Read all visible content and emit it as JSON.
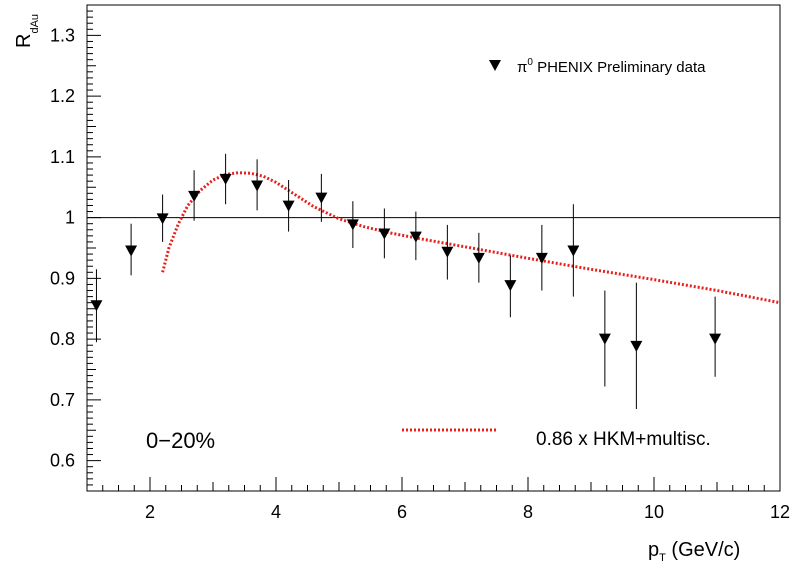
{
  "chart_data": {
    "type": "scatter",
    "xlabel": "p",
    "xlabel_sub": "T",
    "xlabel_unit": " (GeV/c)",
    "ylabel": "R",
    "ylabel_sub": "dAu",
    "xlim": [
      1.0,
      12.0
    ],
    "ylim": [
      0.55,
      1.35
    ],
    "xticks": [
      2,
      4,
      6,
      8,
      10,
      12
    ],
    "yticks": [
      0.6,
      0.7,
      0.8,
      0.9,
      1,
      1.1,
      1.2,
      1.3
    ],
    "ytick_labels": [
      "0.6",
      "0.7",
      "0.8",
      "0.9",
      "1",
      "1.1",
      "1.2",
      "1.3"
    ],
    "reference_line_y": 1.0,
    "annotation": "0−20%",
    "series": [
      {
        "name": "π⁰ PHENIX Preliminary data",
        "legend_main": "π",
        "legend_sup": "0",
        "legend_rest": " PHENIX Preliminary data",
        "marker": "down-triangle",
        "color": "#000000",
        "points": [
          {
            "x": 1.15,
            "y": 0.855,
            "lo": 0.795,
            "hi": 0.915
          },
          {
            "x": 1.7,
            "y": 0.945,
            "lo": 0.905,
            "hi": 0.99
          },
          {
            "x": 2.2,
            "y": 0.998,
            "lo": 0.96,
            "hi": 1.038
          },
          {
            "x": 2.7,
            "y": 1.035,
            "lo": 0.995,
            "hi": 1.078
          },
          {
            "x": 3.2,
            "y": 1.063,
            "lo": 1.022,
            "hi": 1.105
          },
          {
            "x": 3.7,
            "y": 1.052,
            "lo": 1.012,
            "hi": 1.096
          },
          {
            "x": 4.2,
            "y": 1.019,
            "lo": 0.977,
            "hi": 1.062
          },
          {
            "x": 4.72,
            "y": 1.032,
            "lo": 0.993,
            "hi": 1.072
          },
          {
            "x": 5.22,
            "y": 0.988,
            "lo": 0.95,
            "hi": 1.027
          },
          {
            "x": 5.72,
            "y": 0.973,
            "lo": 0.933,
            "hi": 1.015
          },
          {
            "x": 6.22,
            "y": 0.968,
            "lo": 0.93,
            "hi": 1.01
          },
          {
            "x": 6.72,
            "y": 0.943,
            "lo": 0.898,
            "hi": 0.988
          },
          {
            "x": 7.22,
            "y": 0.933,
            "lo": 0.893,
            "hi": 0.975
          },
          {
            "x": 7.72,
            "y": 0.888,
            "lo": 0.836,
            "hi": 0.938
          },
          {
            "x": 8.22,
            "y": 0.933,
            "lo": 0.88,
            "hi": 0.988
          },
          {
            "x": 8.72,
            "y": 0.945,
            "lo": 0.87,
            "hi": 1.022
          },
          {
            "x": 9.22,
            "y": 0.8,
            "lo": 0.722,
            "hi": 0.88
          },
          {
            "x": 9.72,
            "y": 0.788,
            "lo": 0.685,
            "hi": 0.893
          },
          {
            "x": 10.97,
            "y": 0.8,
            "lo": 0.738,
            "hi": 0.87
          }
        ]
      },
      {
        "name": "0.86 x HKM+multisc.",
        "style": "dotted-line",
        "color": "#e8201c",
        "x": [
          2.2,
          2.3,
          2.45,
          2.6,
          2.8,
          3.0,
          3.2,
          3.4,
          3.6,
          3.8,
          4.0,
          4.3,
          4.6,
          5.0,
          5.4,
          5.8,
          6.3,
          7.0,
          8.0,
          9.0,
          10.0,
          11.0,
          12.0
        ],
        "y": [
          0.91,
          0.95,
          0.99,
          1.02,
          1.045,
          1.062,
          1.071,
          1.074,
          1.073,
          1.068,
          1.058,
          1.038,
          1.018,
          0.998,
          0.985,
          0.975,
          0.965,
          0.952,
          0.933,
          0.915,
          0.898,
          0.88,
          0.86
        ]
      }
    ]
  }
}
